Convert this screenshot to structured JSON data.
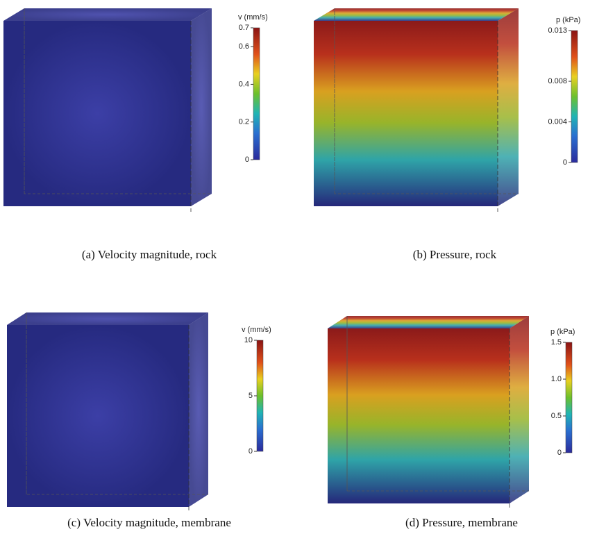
{
  "panels": [
    {
      "caption": "(a) Velocity magnitude, rock",
      "colorbar": {
        "title": "v (mm/s)",
        "lim": [
          0,
          0.7
        ],
        "ticks": [
          0,
          0.2,
          0.4,
          0.6,
          0.7
        ]
      }
    },
    {
      "caption": "(b) Pressure, rock",
      "colorbar": {
        "title": "p (kPa)",
        "lim": [
          0,
          0.013
        ],
        "ticks": [
          0,
          0.004,
          0.008,
          0.013
        ]
      }
    },
    {
      "caption": "(c) Velocity magnitude, membrane",
      "colorbar": {
        "title": "v (mm/s)",
        "lim": [
          0,
          10
        ],
        "ticks": [
          0,
          5,
          10
        ]
      }
    },
    {
      "caption": "(d) Pressure, membrane",
      "colorbar": {
        "title": "p (kPa)",
        "lim": [
          0,
          1.5
        ],
        "ticks": [
          0,
          0.5,
          {
            "value": 1,
            "label": "1.0"
          },
          1.5
        ]
      }
    }
  ]
}
